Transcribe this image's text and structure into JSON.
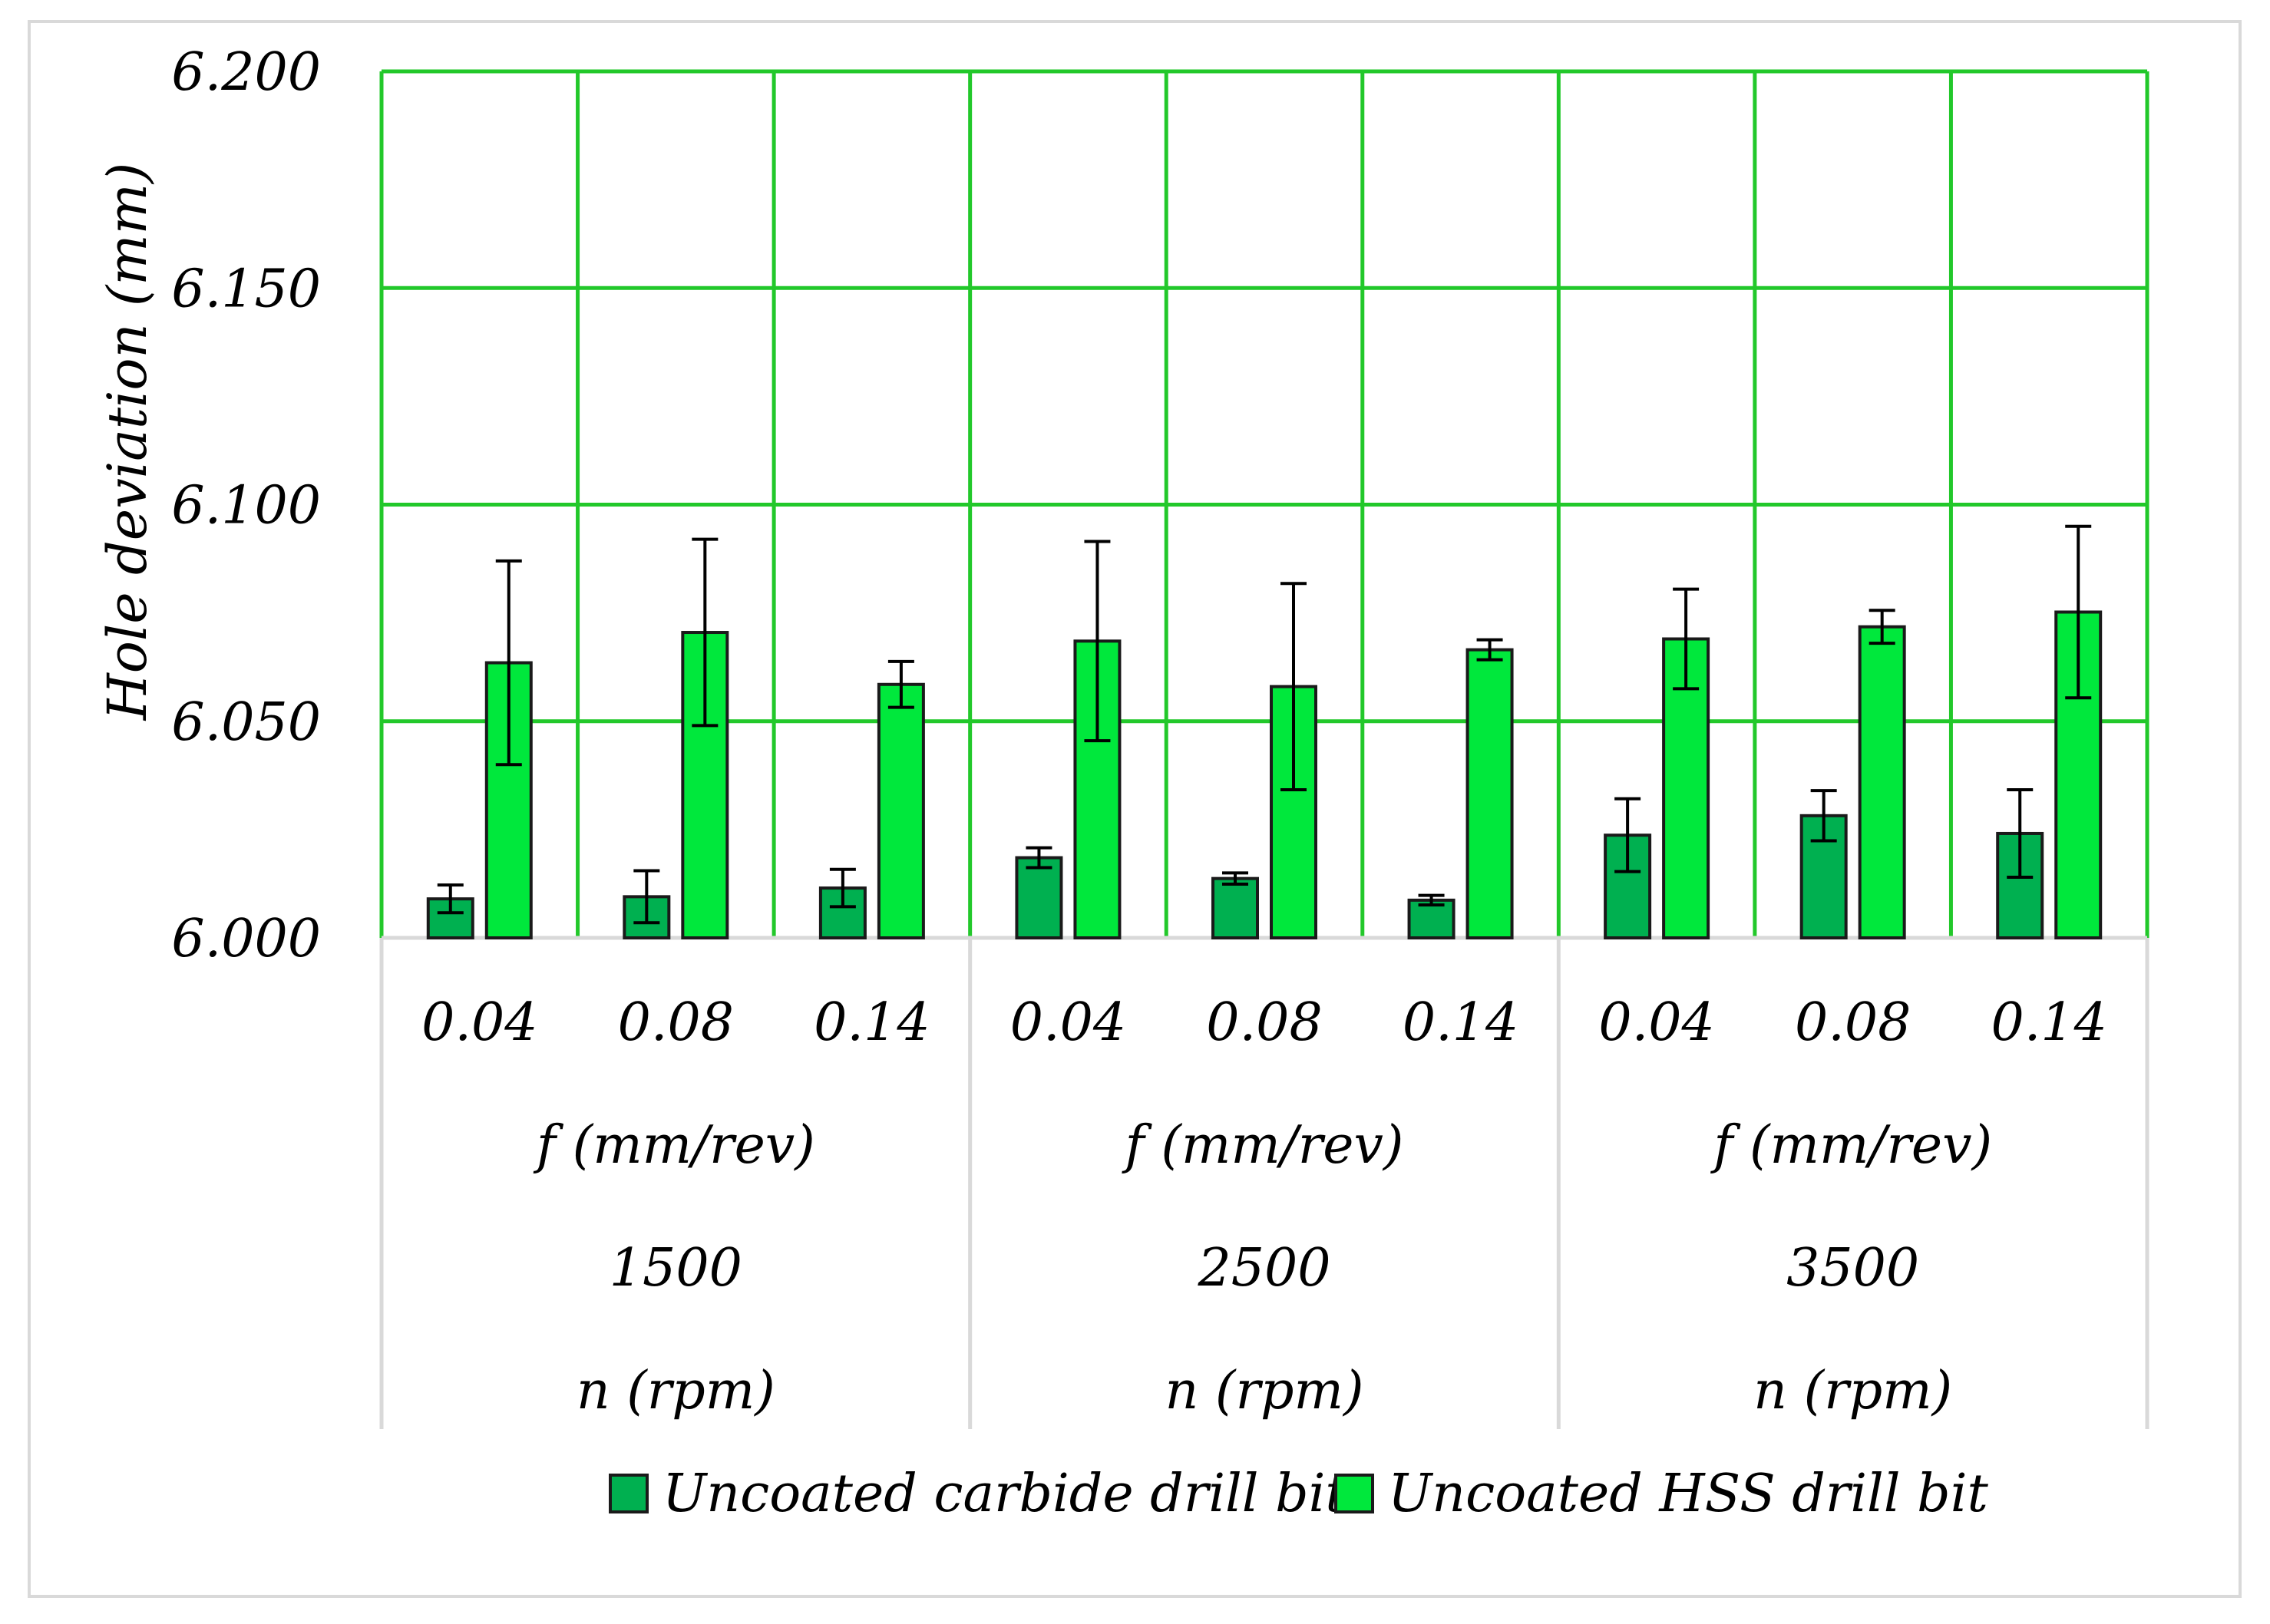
{
  "chart_data": {
    "type": "bar",
    "title": "",
    "ylabel": "Hole deviation (mm)",
    "ylim": [
      6.0,
      6.2
    ],
    "yticks": [
      "6.000",
      "6.050",
      "6.100",
      "6.150",
      "6.200"
    ],
    "ytick_values": [
      6.0,
      6.05,
      6.1,
      6.15,
      6.2
    ],
    "grid": true,
    "legend_position": "bottom",
    "categories": [
      "0.04",
      "0.08",
      "0.14",
      "0.04",
      "0.08",
      "0.14",
      "0.04",
      "0.08",
      "0.14"
    ],
    "groups": [
      {
        "feed_label": "f (mm/rev)",
        "speed": "1500",
        "speed_label": "n (rpm)"
      },
      {
        "feed_label": "f (mm/rev)",
        "speed": "2500",
        "speed_label": "n (rpm)"
      },
      {
        "feed_label": "f (mm/rev)",
        "speed": "3500",
        "speed_label": "n (rpm)"
      }
    ],
    "series": [
      {
        "name": "Uncoated carbide drill bit",
        "color": "#00b050",
        "values": [
          6.009,
          6.0095,
          6.0115,
          6.0185,
          6.0137,
          6.0087,
          6.0237,
          6.0282,
          6.0241
        ],
        "errors": [
          0.0032,
          0.006,
          0.0043,
          0.0023,
          0.0013,
          0.0011,
          0.0084,
          0.0058,
          0.0101
        ]
      },
      {
        "name": "Uncoated HSS drill bit",
        "color": "#00e83c",
        "values": [
          6.0635,
          6.0705,
          6.0585,
          6.0685,
          6.058,
          6.0665,
          6.069,
          6.0718,
          6.0752
        ],
        "errors": [
          0.0235,
          0.0215,
          0.0053,
          0.023,
          0.0238,
          0.0023,
          0.0115,
          0.0038,
          0.0198
        ]
      }
    ]
  }
}
